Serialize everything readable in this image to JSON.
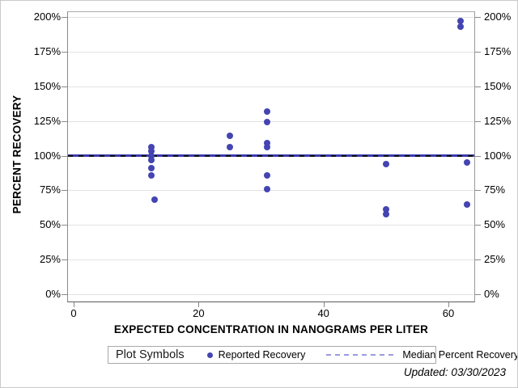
{
  "chart_data": {
    "type": "scatter",
    "title": "",
    "xlabel": "EXPECTED CONCENTRATION IN NANOGRAMS PER LITER",
    "ylabel": "PERCENT RECOVERY",
    "x_ticks": [
      0,
      20,
      40,
      60
    ],
    "y_ticks": [
      0,
      25,
      50,
      75,
      100,
      125,
      150,
      175,
      200
    ],
    "y_tick_suffix": "%",
    "xlim": [
      -1,
      64.3
    ],
    "ylim": [
      -6,
      204
    ],
    "grid": "horizontal-only",
    "legend_position": "bottom",
    "marker_color": "#4444b2",
    "series": [
      {
        "name": "Reported Recovery",
        "type": "scatter",
        "color": "#4444b2",
        "points": [
          {
            "x": 12.5,
            "y": 106
          },
          {
            "x": 12.5,
            "y": 103
          },
          {
            "x": 12.5,
            "y": 100
          },
          {
            "x": 12.5,
            "y": 97
          },
          {
            "x": 12.5,
            "y": 91
          },
          {
            "x": 12.5,
            "y": 86
          },
          {
            "x": 13,
            "y": 68
          },
          {
            "x": 25,
            "y": 114
          },
          {
            "x": 25,
            "y": 106
          },
          {
            "x": 31,
            "y": 132
          },
          {
            "x": 31,
            "y": 124
          },
          {
            "x": 31,
            "y": 109
          },
          {
            "x": 31,
            "y": 106
          },
          {
            "x": 31,
            "y": 86
          },
          {
            "x": 31,
            "y": 76
          },
          {
            "x": 50,
            "y": 94
          },
          {
            "x": 50,
            "y": 61
          },
          {
            "x": 50,
            "y": 58
          },
          {
            "x": 62,
            "y": 197
          },
          {
            "x": 62,
            "y": 193
          },
          {
            "x": 63,
            "y": 95
          },
          {
            "x": 63,
            "y": 65
          }
        ]
      },
      {
        "name": "Median Percent Recovery",
        "type": "line",
        "style": "dashed",
        "color": "#101010",
        "value": 100
      }
    ],
    "reference_line": {
      "value": 100,
      "color": "#3a3aad"
    }
  },
  "legend": {
    "title": "Plot Symbols",
    "items": [
      {
        "label": "Reported Recovery",
        "marker": "dot-marker-icon",
        "color": "#4444b2"
      },
      {
        "label": "Median Percent Recovery",
        "marker": "dashed-line-icon",
        "color": "#9a9ade"
      }
    ]
  },
  "footer": {
    "updated": "Updated: 03/30/2023"
  }
}
